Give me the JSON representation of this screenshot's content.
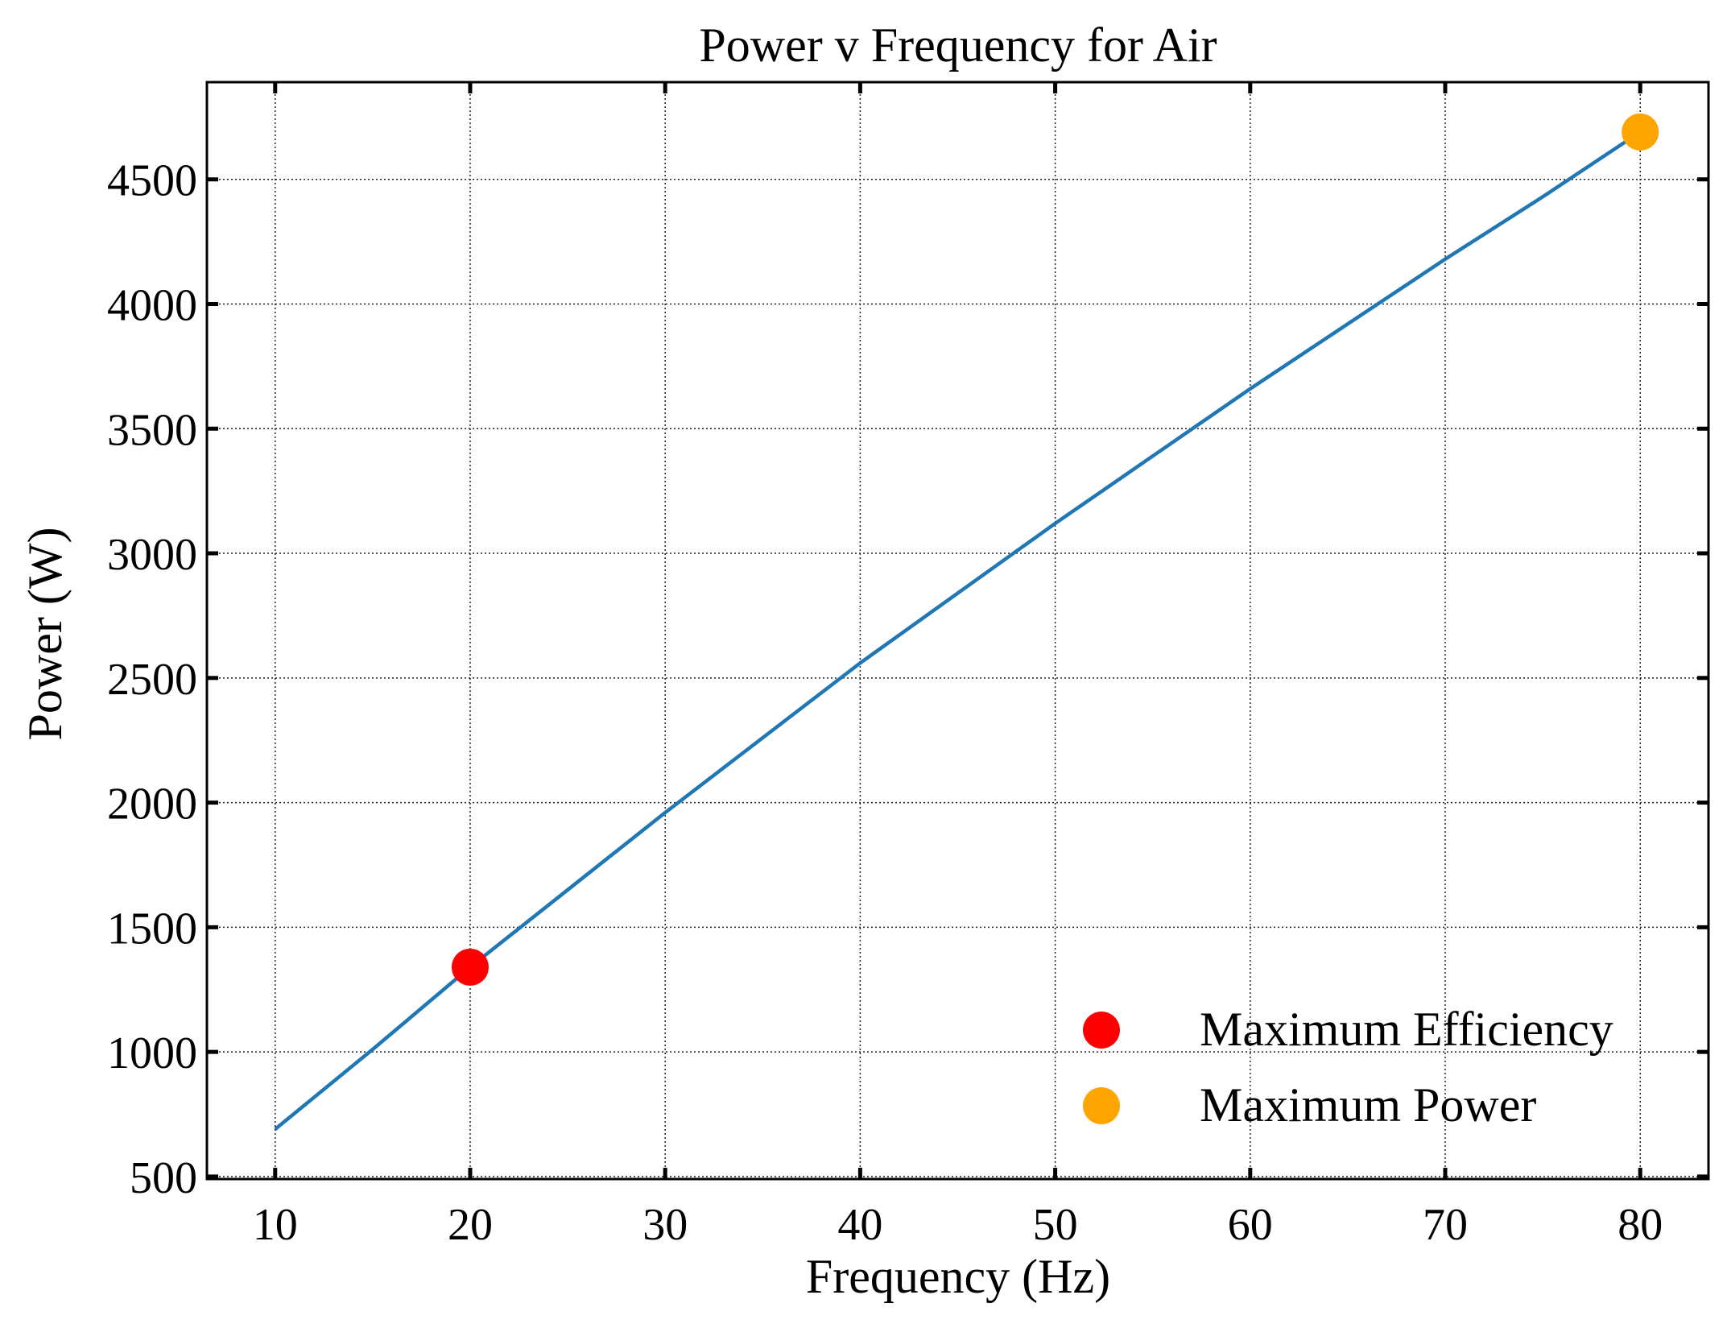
{
  "chart_data": {
    "type": "line",
    "title": "Power v Frequency for Air",
    "xlabel": "Frequency (Hz)",
    "ylabel": "Power (W)",
    "xlim": [
      6.5,
      83.5
    ],
    "ylim": [
      490,
      4890
    ],
    "xticks": [
      10,
      20,
      30,
      40,
      50,
      60,
      70,
      80
    ],
    "yticks": [
      500,
      1000,
      1500,
      2000,
      2500,
      3000,
      3500,
      4000,
      4500
    ],
    "grid": true,
    "series": [
      {
        "name": "",
        "color": "#1f77b4",
        "x": [
          10,
          15,
          20,
          25,
          30,
          35,
          40,
          45,
          50,
          55,
          60,
          65,
          70,
          75,
          80
        ],
        "y": [
          690,
          1010,
          1340,
          1650,
          1960,
          2260,
          2560,
          2840,
          3120,
          3390,
          3660,
          3920,
          4180,
          4430,
          4690
        ]
      }
    ],
    "points": [
      {
        "name": "Maximum Efficiency",
        "x": 20,
        "y": 1340,
        "color": "#ff0000"
      },
      {
        "name": "Maximum Power",
        "x": 80,
        "y": 4690,
        "color": "#ffa500"
      }
    ],
    "legend": {
      "position": "bottom-right",
      "entries": [
        {
          "label": "Maximum Efficiency",
          "color": "#ff0000"
        },
        {
          "label": "Maximum Power",
          "color": "#ffa500"
        }
      ]
    }
  }
}
